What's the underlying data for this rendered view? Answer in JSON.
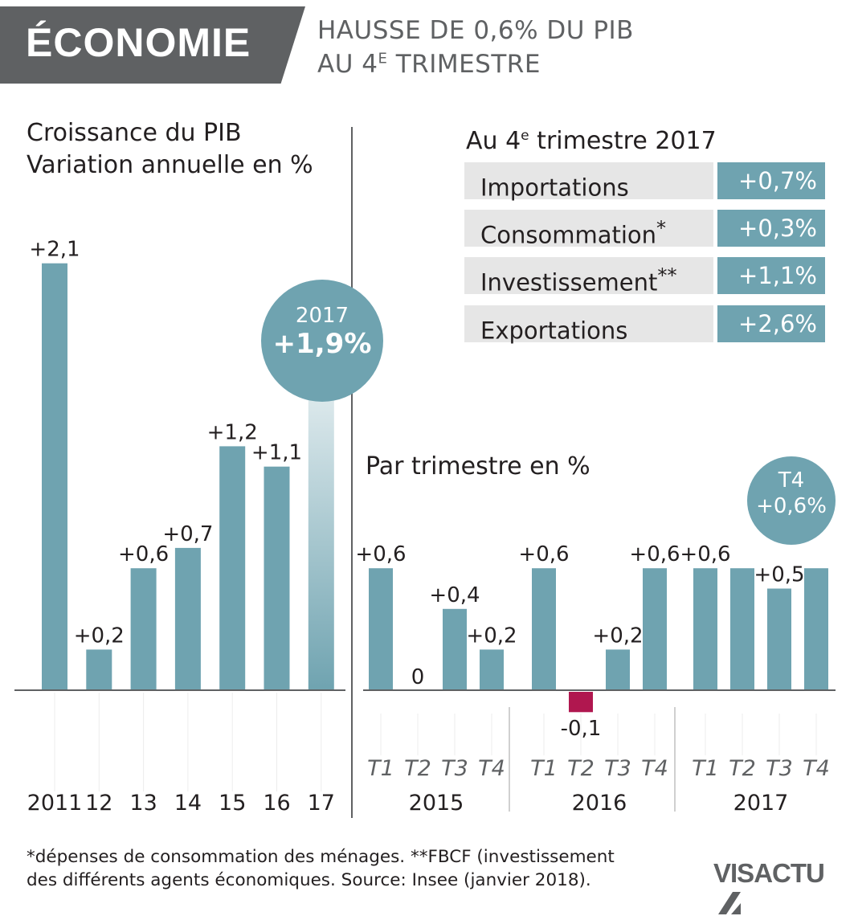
{
  "header": {
    "section": "ÉCONOMIE",
    "headline_line1": "HAUSSE DE 0,6% DU PIB",
    "headline_line2_pre": "AU 4",
    "headline_line2_sup": "E",
    "headline_line2_post": " TRIMESTRE"
  },
  "annual_panel": {
    "title_line1": "Croissance du PIB",
    "title_line2": "Variation annuelle en %",
    "highlight": {
      "year": "2017",
      "value": "+1,9%"
    }
  },
  "components_panel": {
    "title_pre": "Au 4",
    "title_sup": "e",
    "title_post": " trimestre 2017",
    "rows": [
      {
        "label": "Importations",
        "mark": "",
        "value": "+0,7%"
      },
      {
        "label": "Consommation",
        "mark": "*",
        "value": "+0,3%"
      },
      {
        "label": "Investissement",
        "mark": "**",
        "value": "+1,1%"
      },
      {
        "label": "Exportations",
        "mark": "",
        "value": "+2,6%"
      }
    ]
  },
  "quarterly_panel": {
    "title": "Par trimestre en %",
    "highlight": {
      "label": "T4",
      "value": "+0,6%"
    }
  },
  "chart_data": [
    {
      "type": "bar",
      "title": "Croissance du PIB",
      "ylabel": "Variation annuelle en %",
      "categories": [
        "2011",
        "12",
        "13",
        "14",
        "15",
        "16",
        "17"
      ],
      "values": [
        2.1,
        0.2,
        0.6,
        0.7,
        1.2,
        1.1,
        1.9
      ],
      "labels": [
        "+2,1",
        "+0,2",
        "+0,6",
        "+0,7",
        "+1,2",
        "+1,1",
        ""
      ],
      "color": "#6fa3b0",
      "fade_last_bar": true
    },
    {
      "type": "bar",
      "title": "Par trimestre en %",
      "groups": [
        {
          "year": "2015",
          "quarters": [
            "T1",
            "T2",
            "T3",
            "T4"
          ],
          "values": [
            0.6,
            0,
            0.4,
            0.2
          ],
          "labels": [
            "+0,6",
            "0",
            "+0,4",
            "+0,2"
          ]
        },
        {
          "year": "2016",
          "quarters": [
            "T1",
            "T2",
            "T3",
            "T4"
          ],
          "values": [
            0.6,
            -0.1,
            0.2,
            0.6
          ],
          "labels": [
            "+0,6",
            "-0,1",
            "+0,2",
            "+0,6"
          ]
        },
        {
          "year": "2017",
          "quarters": [
            "T1",
            "T2",
            "T3",
            "T4"
          ],
          "values": [
            0.6,
            0.6,
            0.5,
            0.6
          ],
          "labels": [
            "+0,6",
            "",
            "+0,5",
            ""
          ]
        }
      ],
      "color_positive": "#6fa3b0",
      "color_negative": "#b0174f"
    }
  ],
  "footnote": {
    "line1": "*dépenses de consommation des ménages. **FBCF (investissement",
    "line2": "des différents agents économiques.  Source: Insee (janvier 2018)."
  },
  "brand": {
    "name": "VISACTU"
  },
  "colors": {
    "accent": "#6fa3b0",
    "negative": "#b0174f",
    "header": "#5f6163",
    "label_bg": "#e6e6e6"
  }
}
